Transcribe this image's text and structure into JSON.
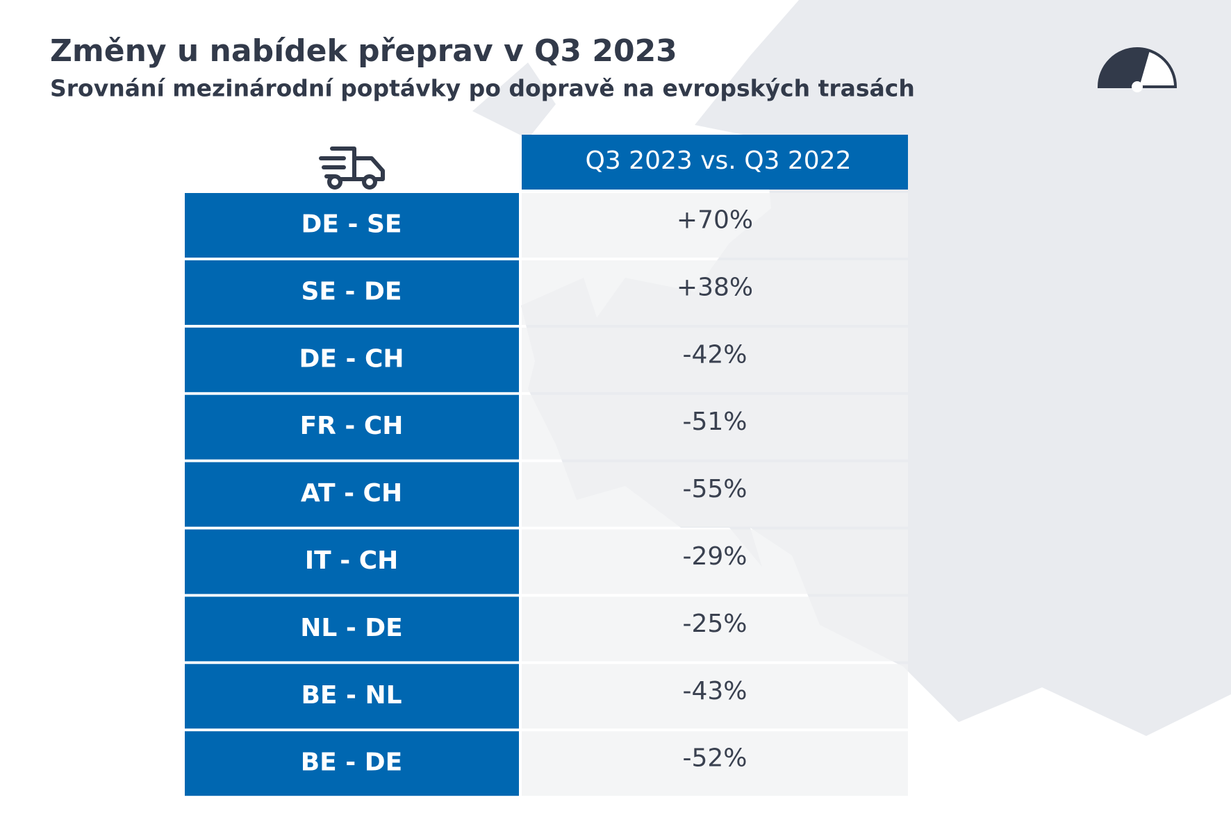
{
  "header": {
    "title": "Změny u nabídek přeprav v Q3 2023",
    "subtitle": "Srovnání mezinárodní poptávky po dopravě na evropských trasách"
  },
  "table": {
    "column_header": "Q3 2023 vs. Q3 2022",
    "rows": [
      [
        "DE - SE",
        "+70%"
      ],
      [
        "SE - DE",
        "+38%"
      ],
      [
        "DE - CH",
        "-42%"
      ],
      [
        "FR - CH",
        "-51%"
      ],
      [
        "AT - CH",
        "-55%"
      ],
      [
        "IT - CH",
        "-29%"
      ],
      [
        "NL - DE",
        "-25%"
      ],
      [
        "BE - NL",
        "-43%"
      ],
      [
        "BE - DE",
        "-52%"
      ]
    ]
  }
}
